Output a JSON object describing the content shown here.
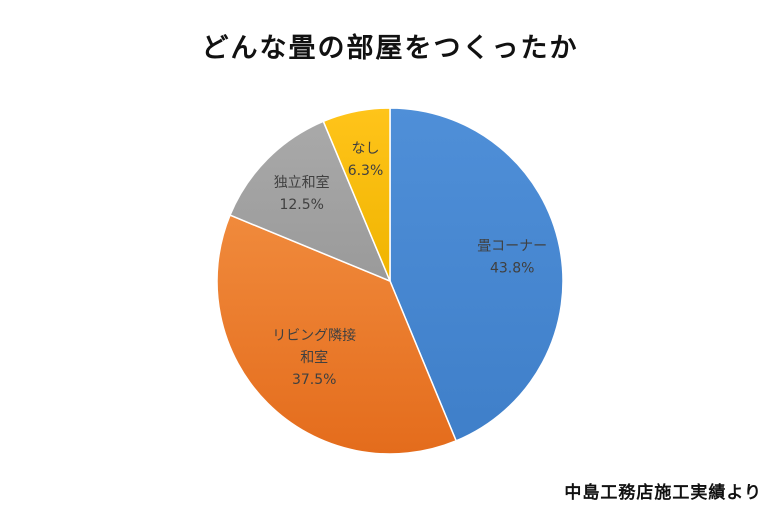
{
  "title": "どんな畳の部屋をつくったか",
  "source_note": "中島工務店施工実績より",
  "chart_data": {
    "type": "pie",
    "title": "どんな畳の部屋をつくったか",
    "start": "12 o'clock, clockwise",
    "slices": [
      {
        "label_lines": [
          "畳コーナー"
        ],
        "value": 43.8,
        "value_text": "43.8%",
        "color": "#4f8fd8",
        "color_dark": "#3f7fc9"
      },
      {
        "label_lines": [
          "リビング隣接",
          "和室"
        ],
        "value": 37.5,
        "value_text": "37.5%",
        "color": "#f08a3c",
        "color_dark": "#e46c1c"
      },
      {
        "label_lines": [
          "独立和室"
        ],
        "value": 12.5,
        "value_text": "12.5%",
        "color": "#a9a9a9",
        "color_dark": "#9a9a9a"
      },
      {
        "label_lines": [
          "なし"
        ],
        "value": 6.3,
        "value_text": "6.3%",
        "color": "#ffc41a",
        "color_dark": "#f0b400"
      }
    ]
  }
}
